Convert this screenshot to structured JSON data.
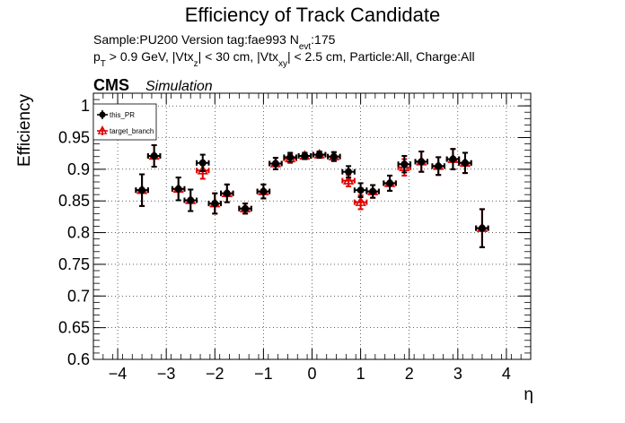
{
  "chart_data": {
    "type": "scatter",
    "title": "Efficiency of Track Candidate",
    "subtitle_line1": {
      "prefix": "Sample:PU200   Version tag:fae993  N",
      "sub": "evt",
      "suffix": ":175"
    },
    "subtitle_line2": {
      "p": "p",
      "p_sub": "T",
      "part1": " > 0.9 GeV, |Vtx",
      "z_sub": "z",
      "part2": "| < 30 cm, |Vtx",
      "xy_sub": "xy",
      "part3": "| < 2.5 cm, Particle:All, Charge:All"
    },
    "cms_label": "CMS",
    "simulation_label": "Simulation",
    "xlabel": "η",
    "ylabel": "Efficiency",
    "xlim": [
      -4.5,
      4.5
    ],
    "ylim": [
      0.6,
      1.02
    ],
    "xticks": [
      {
        "value": -4,
        "label": "−4"
      },
      {
        "value": -3,
        "label": "−3"
      },
      {
        "value": -2,
        "label": "−2"
      },
      {
        "value": -1,
        "label": "−1"
      },
      {
        "value": 0,
        "label": "0"
      },
      {
        "value": 1,
        "label": "1"
      },
      {
        "value": 2,
        "label": "2"
      },
      {
        "value": 3,
        "label": "3"
      },
      {
        "value": 4,
        "label": "4"
      }
    ],
    "yticks": [
      {
        "value": 0.6,
        "label": "0.6"
      },
      {
        "value": 0.65,
        "label": "0.65"
      },
      {
        "value": 0.7,
        "label": "0.7"
      },
      {
        "value": 0.75,
        "label": "0.75"
      },
      {
        "value": 0.8,
        "label": "0.8"
      },
      {
        "value": 0.85,
        "label": "0.85"
      },
      {
        "value": 0.9,
        "label": "0.9"
      },
      {
        "value": 0.95,
        "label": "0.95"
      },
      {
        "value": 1,
        "label": "1"
      }
    ],
    "grid": true,
    "legend_position": "top-left",
    "x_halfwidth": 0.125,
    "series": [
      {
        "name": "this_PR",
        "color": "#000000",
        "marker": "filled-circle",
        "x": [
          -3.5,
          -3.25,
          -2.75,
          -2.5,
          -2.25,
          -2.0,
          -1.75,
          -1.375,
          -1.0,
          -0.75,
          -0.45,
          -0.15,
          0.15,
          0.45,
          0.75,
          1.0,
          1.25,
          1.6,
          1.9,
          2.25,
          2.6,
          2.9,
          3.15,
          3.5
        ],
        "y": [
          0.867,
          0.921,
          0.869,
          0.851,
          0.91,
          0.846,
          0.862,
          0.838,
          0.865,
          0.909,
          0.919,
          0.921,
          0.923,
          0.92,
          0.896,
          0.867,
          0.865,
          0.878,
          0.908,
          0.912,
          0.905,
          0.916,
          0.91,
          0.807
        ],
        "yerr": [
          0.025,
          0.017,
          0.018,
          0.017,
          0.013,
          0.016,
          0.014,
          0.008,
          0.011,
          0.009,
          0.007,
          0.005,
          0.005,
          0.007,
          0.009,
          0.011,
          0.01,
          0.012,
          0.013,
          0.016,
          0.014,
          0.016,
          0.016,
          0.03
        ]
      },
      {
        "name": "target_branch",
        "color": "#e00000",
        "marker": "open-triangle",
        "x": [
          -3.5,
          -3.25,
          -2.75,
          -2.5,
          -2.25,
          -2.0,
          -1.75,
          -1.375,
          -1.0,
          -0.75,
          -0.45,
          -0.15,
          0.15,
          0.45,
          0.75,
          1.0,
          1.25,
          1.6,
          1.9,
          2.25,
          2.6,
          2.9,
          3.15,
          3.5
        ],
        "y": [
          0.867,
          0.921,
          0.869,
          0.851,
          0.898,
          0.846,
          0.862,
          0.838,
          0.865,
          0.909,
          0.917,
          0.921,
          0.923,
          0.92,
          0.882,
          0.848,
          0.865,
          0.878,
          0.903,
          0.912,
          0.905,
          0.916,
          0.91,
          0.807
        ],
        "yerr": [
          0.025,
          0.017,
          0.018,
          0.017,
          0.013,
          0.016,
          0.014,
          0.008,
          0.011,
          0.009,
          0.007,
          0.005,
          0.005,
          0.007,
          0.009,
          0.011,
          0.01,
          0.012,
          0.013,
          0.016,
          0.014,
          0.016,
          0.016,
          0.03
        ]
      }
    ]
  }
}
